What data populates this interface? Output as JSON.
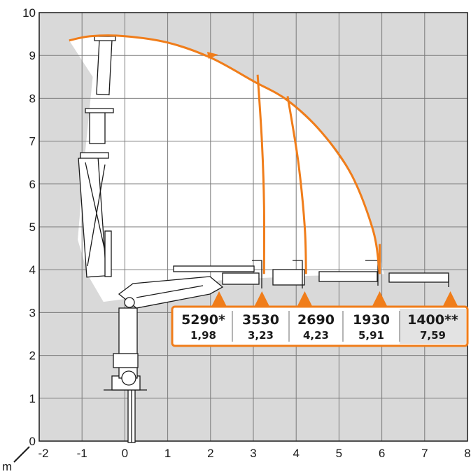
{
  "x_axis": {
    "unit": "m",
    "ticks": [
      "-2",
      "-1",
      "0",
      "1",
      "2",
      "3",
      "4",
      "5",
      "6",
      "7",
      "8"
    ]
  },
  "y_axis": {
    "ticks": [
      "0",
      "1",
      "2",
      "3",
      "4",
      "5",
      "6",
      "7",
      "8",
      "9",
      "10"
    ]
  },
  "colors": {
    "grid_bg": "#d9d9d9",
    "grid_line": "#7a7a7a",
    "envelope": "#ffffff",
    "curve": "#f07d1a",
    "outline": "#1a1a1a"
  },
  "load_table": [
    {
      "load": "5290*",
      "reach": "1,98",
      "x": 2.2
    },
    {
      "load": "3530",
      "reach": "3,23",
      "x": 3.2
    },
    {
      "load": "2690",
      "reach": "4,23",
      "x": 4.2
    },
    {
      "load": "1930",
      "reach": "5,91",
      "x": 5.95
    },
    {
      "load": "1400**",
      "reach": "7,59",
      "x": 7.6
    }
  ],
  "curves": {
    "outer_arc": [
      [
        -1.3,
        9.35
      ],
      [
        -0.8,
        9.45
      ],
      [
        0,
        9.45
      ],
      [
        1.0,
        9.3
      ],
      [
        2.0,
        8.95
      ],
      [
        3.0,
        8.4
      ],
      [
        3.8,
        7.95
      ],
      [
        4.6,
        7.2
      ],
      [
        5.3,
        6.2
      ],
      [
        5.8,
        4.9
      ],
      [
        5.95,
        3.9
      ]
    ],
    "drops": [
      [
        [
          3.1,
          8.55
        ],
        [
          3.2,
          7.0
        ],
        [
          3.25,
          5.5
        ],
        [
          3.25,
          3.9
        ]
      ],
      [
        [
          3.8,
          8.05
        ],
        [
          4.05,
          6.5
        ],
        [
          4.2,
          5.0
        ],
        [
          4.23,
          3.9
        ]
      ]
    ]
  },
  "envelope": [
    [
      -1.3,
      9.35
    ],
    [
      -0.8,
      9.45
    ],
    [
      0,
      9.45
    ],
    [
      1.0,
      9.3
    ],
    [
      2.0,
      8.95
    ],
    [
      3.0,
      8.4
    ],
    [
      3.8,
      7.95
    ],
    [
      4.6,
      7.2
    ],
    [
      5.3,
      6.2
    ],
    [
      5.75,
      5.1
    ],
    [
      6.05,
      3.9
    ],
    [
      4.0,
      3.85
    ],
    [
      2.2,
      3.75
    ],
    [
      1.0,
      3.45
    ],
    [
      -0.5,
      3.25
    ],
    [
      -0.85,
      3.85
    ],
    [
      -1.1,
      4.7
    ],
    [
      -0.95,
      6.5
    ],
    [
      -0.75,
      8.5
    ],
    [
      -1.3,
      9.35
    ]
  ]
}
